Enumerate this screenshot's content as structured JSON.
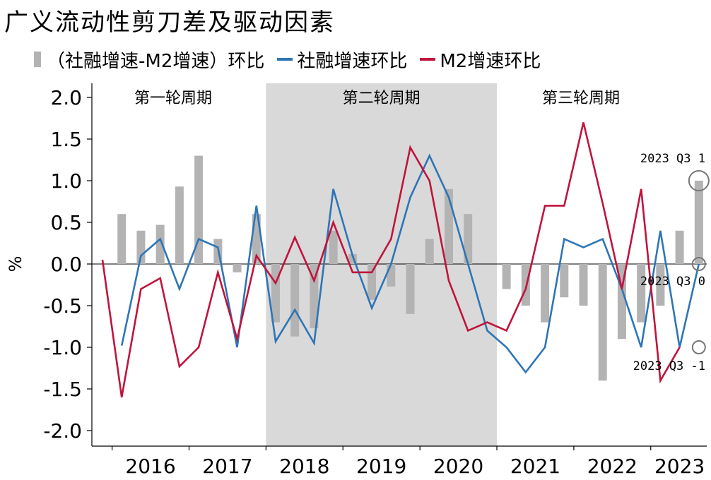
{
  "title": "广义流动性剪刀差及驱动因素",
  "legend": {
    "bar_label": "（社融增速-M2增速）环比",
    "line1_label": "社融增速环比",
    "line2_label": "M2增速环比"
  },
  "colors": {
    "bar": "#b3b3b3",
    "line1": "#2e75b6",
    "line2": "#c0143c",
    "shade": "#d9d9d9"
  },
  "chart_data": {
    "type": "bar+line",
    "title": "广义流动性剪刀差及驱动因素",
    "ylabel": "%",
    "ylim": [
      -2.0,
      2.0
    ],
    "yticks": [
      "2.0",
      "1.5",
      "1.0",
      "0.5",
      "0.0",
      "-0.5",
      "-1.0",
      "-1.5",
      "-2.0"
    ],
    "ytick_values": [
      2.0,
      1.5,
      1.0,
      0.5,
      0.0,
      -0.5,
      -1.0,
      -1.5,
      -2.0
    ],
    "year_labels": [
      "2016",
      "2017",
      "2018",
      "2019",
      "2020",
      "2021",
      "2022",
      "2023"
    ],
    "periods": [
      "2015Q4",
      "2016Q1",
      "2016Q2",
      "2016Q3",
      "2016Q4",
      "2017Q1",
      "2017Q2",
      "2017Q3",
      "2017Q4",
      "2018Q1",
      "2018Q2",
      "2018Q3",
      "2018Q4",
      "2019Q1",
      "2019Q2",
      "2019Q3",
      "2019Q4",
      "2020Q1",
      "2020Q2",
      "2020Q3",
      "2020Q4",
      "2021Q1",
      "2021Q2",
      "2021Q3",
      "2021Q4",
      "2022Q1",
      "2022Q2",
      "2022Q3",
      "2022Q4",
      "2023Q1",
      "2023Q2",
      "2023Q3"
    ],
    "series": [
      {
        "name": "（社融增速-M2增速）环比",
        "type": "bar",
        "values": [
          null,
          0.6,
          0.4,
          0.47,
          0.93,
          1.3,
          0.3,
          -0.1,
          0.6,
          -0.7,
          -0.87,
          -0.77,
          0.4,
          0.12,
          -0.43,
          -0.27,
          -0.6,
          0.3,
          0.9,
          0.6,
          null,
          -0.3,
          -0.5,
          -0.7,
          -0.4,
          -0.5,
          -1.4,
          -0.9,
          -0.7,
          -0.5,
          0.4,
          1.0
        ]
      },
      {
        "name": "社融增速环比",
        "type": "line",
        "values": [
          null,
          -0.98,
          0.1,
          0.3,
          -0.3,
          0.3,
          0.2,
          -1.0,
          0.7,
          -0.93,
          -0.55,
          -0.95,
          0.9,
          0.1,
          -0.53,
          0.0,
          0.8,
          1.3,
          0.8,
          0.0,
          -0.8,
          -1.0,
          -1.3,
          -1.0,
          0.3,
          0.2,
          0.3,
          -0.3,
          -1.0,
          0.4,
          -1.0,
          0.0
        ]
      },
      {
        "name": "M2增速环比",
        "type": "line",
        "values": [
          0.05,
          -1.6,
          -0.3,
          -0.17,
          -1.23,
          -1.0,
          -0.1,
          -0.9,
          0.1,
          -0.23,
          0.32,
          -0.2,
          0.5,
          -0.1,
          -0.1,
          0.3,
          1.4,
          1.0,
          -0.2,
          -0.8,
          -0.7,
          -0.8,
          -0.3,
          0.7,
          0.7,
          1.7,
          0.73,
          -0.3,
          0.9,
          -1.4,
          -1.0,
          null
        ]
      }
    ],
    "shaded_region": {
      "from": "2018",
      "to": "2020"
    },
    "cycle_labels": [
      "第一轮周期",
      "第二轮周期",
      "第三轮周期"
    ],
    "annotations": [
      {
        "text": "2023 Q3 1",
        "value": 1.0
      },
      {
        "text": "2023 Q3 0",
        "value": 0.0
      },
      {
        "text": "2023 Q3 -1",
        "value": -1.0
      }
    ],
    "grid": false,
    "legend_position": "top"
  }
}
